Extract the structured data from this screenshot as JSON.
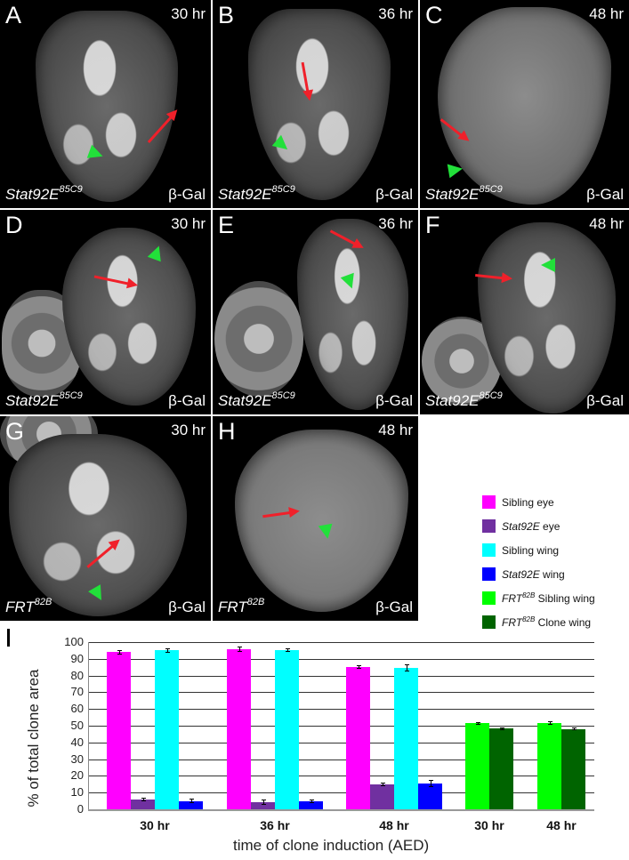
{
  "panels": [
    {
      "id": "A",
      "time": "30 hr",
      "genotype": "Stat92E",
      "allele": "85C9",
      "stain": "β-Gal"
    },
    {
      "id": "B",
      "time": "36 hr",
      "genotype": "Stat92E",
      "allele": "85C9",
      "stain": "β-Gal"
    },
    {
      "id": "C",
      "time": "48 hr",
      "genotype": "Stat92E",
      "allele": "85C9",
      "stain": "β-Gal"
    },
    {
      "id": "D",
      "time": "30 hr",
      "genotype": "Stat92E",
      "allele": "85C9",
      "stain": "β-Gal"
    },
    {
      "id": "E",
      "time": "36 hr",
      "genotype": "Stat92E",
      "allele": "85C9",
      "stain": "β-Gal"
    },
    {
      "id": "F",
      "time": "48 hr",
      "genotype": "Stat92E",
      "allele": "85C9",
      "stain": "β-Gal"
    },
    {
      "id": "G",
      "time": "30 hr",
      "genotype": "FRT",
      "allele": "82B",
      "stain": "β-Gal"
    },
    {
      "id": "H",
      "time": "48 hr",
      "genotype": "FRT",
      "allele": "82B",
      "stain": "β-Gal"
    }
  ],
  "legend": [
    {
      "prefix": "",
      "prefix_sup": "",
      "italic": "",
      "text": "Sibling eye",
      "color": "#ff00ff"
    },
    {
      "prefix": "",
      "prefix_sup": "",
      "italic": "Stat92E",
      "text": " eye",
      "color": "#7030a0"
    },
    {
      "prefix": "",
      "prefix_sup": "",
      "italic": "",
      "text": "Sibling wing",
      "color": "#00ffff"
    },
    {
      "prefix": "",
      "prefix_sup": "",
      "italic": "Stat92E",
      "text": " wing",
      "color": "#0000ff"
    },
    {
      "prefix": "FRT",
      "prefix_sup": "82B",
      "italic": "",
      "text": " Sibling wing",
      "color": "#00ff00"
    },
    {
      "prefix": "FRT",
      "prefix_sup": "82B",
      "italic": "",
      "text": " Clone wing",
      "color": "#006400"
    }
  ],
  "panel_i_label": "I",
  "chart_data": {
    "type": "bar",
    "title": "",
    "xlabel": "time of clone induction (AED)",
    "ylabel": "% of total clone area",
    "ylim": [
      0,
      100
    ],
    "yticks": [
      0,
      10,
      20,
      30,
      40,
      50,
      60,
      70,
      80,
      90,
      100
    ],
    "grid": true,
    "legend_position": "upper right (outside plot, beside panel H)",
    "categories": [
      "30 hr",
      "36 hr",
      "48 hr",
      "30 hr",
      "48 hr"
    ],
    "groups": [
      {
        "label": "30 hr",
        "series": [
          {
            "name": "Sibling eye",
            "value": 94,
            "err": 1.2,
            "color": "#ff00ff"
          },
          {
            "name": "Stat92E eye",
            "value": 5.8,
            "err": 1.2,
            "color": "#7030a0"
          },
          {
            "name": "Sibling wing",
            "value": 95,
            "err": 1.2,
            "color": "#00ffff"
          },
          {
            "name": "Stat92E wing",
            "value": 5,
            "err": 1.2,
            "color": "#0000ff"
          }
        ]
      },
      {
        "label": "36 hr",
        "series": [
          {
            "name": "Sibling eye",
            "value": 95.5,
            "err": 1.6,
            "color": "#ff00ff"
          },
          {
            "name": "Stat92E eye",
            "value": 4.3,
            "err": 1.6,
            "color": "#7030a0"
          },
          {
            "name": "Sibling wing",
            "value": 95.2,
            "err": 1.2,
            "color": "#00ffff"
          },
          {
            "name": "Stat92E wing",
            "value": 4.6,
            "err": 1.1,
            "color": "#0000ff"
          }
        ]
      },
      {
        "label": "48 hr",
        "series": [
          {
            "name": "Sibling eye",
            "value": 85,
            "err": 1.0,
            "color": "#ff00ff"
          },
          {
            "name": "Stat92E eye",
            "value": 15,
            "err": 1.0,
            "color": "#7030a0"
          },
          {
            "name": "Sibling wing",
            "value": 84.5,
            "err": 2.0,
            "color": "#00ffff"
          },
          {
            "name": "Stat92E wing",
            "value": 15.3,
            "err": 2.0,
            "color": "#0000ff"
          }
        ]
      },
      {
        "label": "30 hr",
        "series": [
          {
            "name": "FRT82B Sibling wing",
            "value": 51.5,
            "err": 0.7,
            "color": "#00ff00"
          },
          {
            "name": "FRT82B Clone wing",
            "value": 48.4,
            "err": 0.8,
            "color": "#006400"
          }
        ]
      },
      {
        "label": "48 hr",
        "series": [
          {
            "name": "FRT82B Sibling wing",
            "value": 51.7,
            "err": 1.0,
            "color": "#00ff00"
          },
          {
            "name": "FRT82B Clone wing",
            "value": 48.1,
            "err": 1.0,
            "color": "#006400"
          }
        ]
      }
    ]
  }
}
